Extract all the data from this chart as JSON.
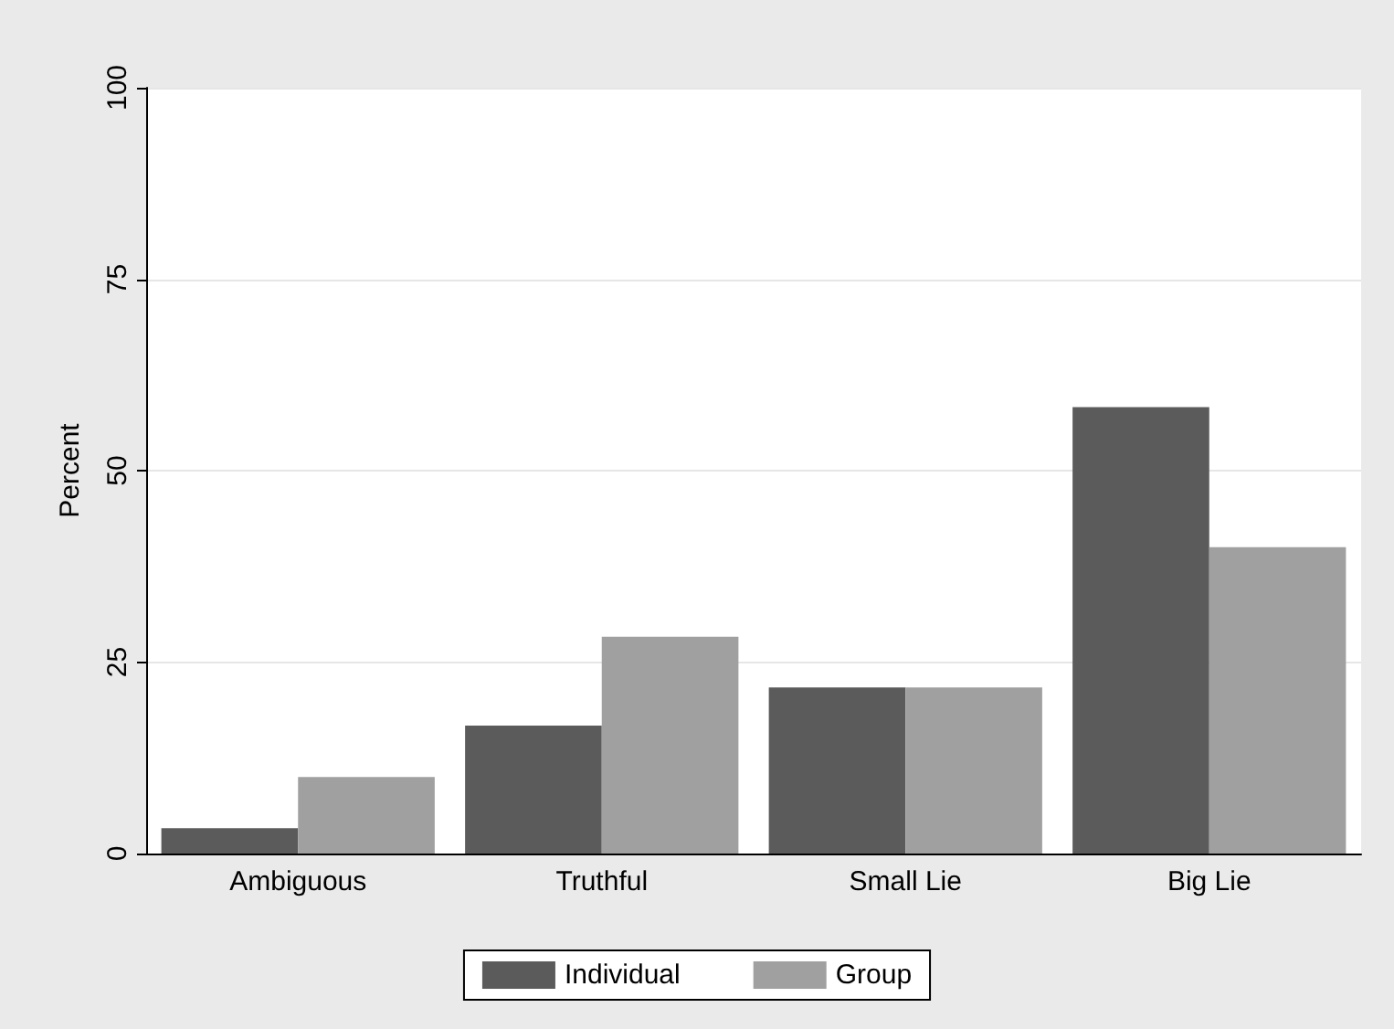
{
  "chart_data": {
    "type": "bar",
    "ylabel": "Percent",
    "categories": [
      "Ambiguous",
      "Truthful",
      "Small Lie",
      "Big Lie"
    ],
    "series": [
      {
        "name": "Individual",
        "color": "#5b5b5b",
        "values": [
          3.3,
          16.7,
          21.7,
          58.3
        ]
      },
      {
        "name": "Group",
        "color": "#a0a0a0",
        "values": [
          10,
          28.3,
          21.7,
          40
        ]
      }
    ],
    "ylim": [
      0,
      100
    ],
    "yticks": [
      0,
      25,
      50,
      75,
      100
    ],
    "grid": "y",
    "legend": "bottom"
  }
}
